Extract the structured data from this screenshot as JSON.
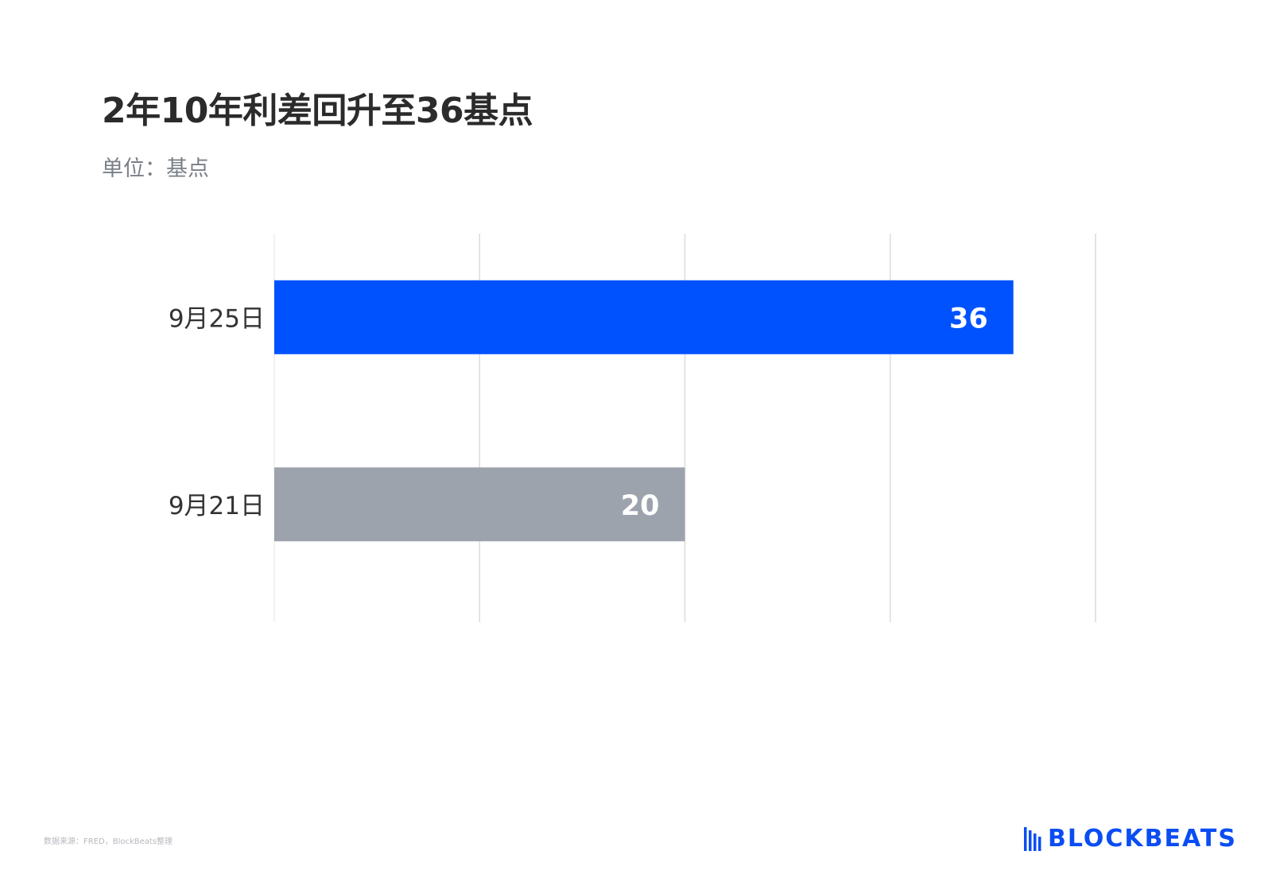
{
  "chart_data": {
    "type": "bar",
    "orientation": "horizontal",
    "title": "2年10年利差回升至36基点",
    "subtitle": "单位：基点",
    "categories": [
      "9月25日",
      "9月21日"
    ],
    "values": [
      36,
      20
    ],
    "data_labels": [
      "36",
      "20"
    ],
    "bar_colors": [
      "#0052ff",
      "#9da3ad"
    ],
    "xlim": [
      0,
      40
    ],
    "x_gridlines": [
      0,
      10,
      20,
      30,
      40
    ],
    "grid": true,
    "tick_labels_visible": false
  },
  "footer": {
    "source": "数据来源：FRED，BlockBeats整理"
  },
  "logo": {
    "text": "BLOCKBEATS",
    "color": "#0a4df2",
    "icon": "blockbeats-logo-icon"
  }
}
